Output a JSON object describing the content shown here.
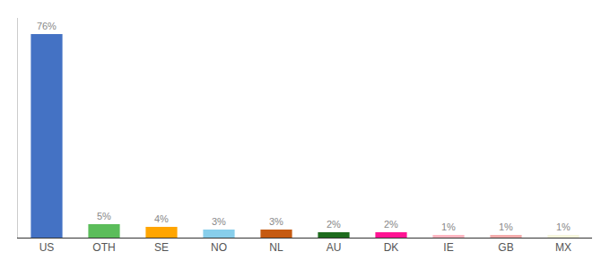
{
  "chart_data": {
    "type": "bar",
    "categories": [
      "US",
      "OTH",
      "SE",
      "NO",
      "NL",
      "AU",
      "DK",
      "IE",
      "GB",
      "MX"
    ],
    "values": [
      76,
      5,
      4,
      3,
      3,
      2,
      2,
      1,
      1,
      1
    ],
    "value_labels": [
      "76%",
      "5%",
      "4%",
      "3%",
      "3%",
      "2%",
      "2%",
      "1%",
      "1%",
      "1%"
    ],
    "data_labels": true,
    "colors": [
      "#4472C4",
      "#5BBD5A",
      "#FFA500",
      "#87CEEB",
      "#C55A11",
      "#1E6B1E",
      "#FF1493",
      "#FFB6C1",
      "#F4ACAC",
      "#F5F5DC"
    ],
    "ylim": [
      0,
      82
    ],
    "grid": false,
    "tick_labels": "x"
  }
}
